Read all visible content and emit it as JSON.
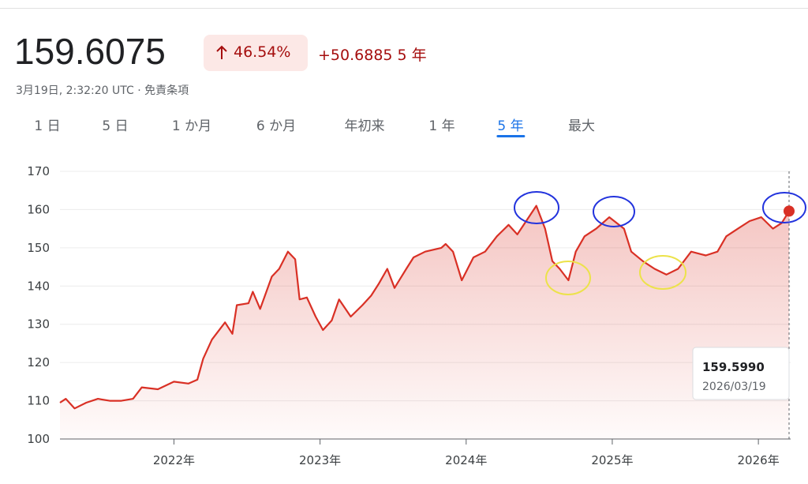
{
  "header": {
    "price": "159.6075",
    "change_percent": "46.54%",
    "change_value": "+50.6885",
    "period": "5 年",
    "timestamp": "3月19日, 2:32:20 UTC",
    "disclaimer": "免責条項"
  },
  "tabs": [
    "1 日",
    "5 日",
    "1 か月",
    "6 か月",
    "年初来",
    "1 年",
    "5 年",
    "最大"
  ],
  "active_tab": 6,
  "chart_data": {
    "type": "line",
    "x": [
      2021.22,
      2021.26,
      2021.32,
      2021.4,
      2021.48,
      2021.56,
      2021.64,
      2021.72,
      2021.78,
      2021.89,
      2022.0,
      2022.1,
      2022.16,
      2022.2,
      2022.26,
      2022.35,
      2022.4,
      2022.43,
      2022.51,
      2022.54,
      2022.59,
      2022.67,
      2022.72,
      2022.78,
      2022.83,
      2022.86,
      2022.91,
      2022.97,
      2023.02,
      2023.08,
      2023.13,
      2023.21,
      2023.29,
      2023.35,
      2023.4,
      2023.46,
      2023.51,
      2023.59,
      2023.64,
      2023.72,
      2023.83,
      2023.86,
      2023.91,
      2023.97,
      2024.05,
      2024.13,
      2024.21,
      2024.29,
      2024.35,
      2024.42,
      2024.48,
      2024.54,
      2024.59,
      2024.64,
      2024.7,
      2024.75,
      2024.81,
      2024.89,
      2024.98,
      2025.08,
      2025.13,
      2025.21,
      2025.29,
      2025.37,
      2025.45,
      2025.54,
      2025.64,
      2025.72,
      2025.78,
      2025.86,
      2025.94,
      2026.02,
      2026.1,
      2026.16,
      2026.21
    ],
    "series": [
      {
        "color": "#d93025",
        "values": [
          109.5,
          110.5,
          108,
          109.5,
          110.5,
          110,
          110,
          110.5,
          113.5,
          113,
          115,
          114.5,
          115.5,
          121,
          126,
          130.5,
          127.5,
          135,
          135.5,
          138.5,
          134,
          142.5,
          144.5,
          149,
          147,
          136.5,
          137,
          132,
          128.5,
          131,
          136.5,
          132,
          135,
          137.5,
          140.5,
          144.5,
          139.5,
          144.5,
          147.5,
          149,
          150,
          151,
          149,
          141.5,
          147.5,
          149,
          153,
          156,
          153.5,
          157.5,
          161,
          155,
          146.5,
          144.5,
          141.5,
          149,
          153,
          155,
          158,
          155,
          149,
          146.5,
          144.5,
          143,
          144.5,
          149,
          148,
          149,
          153,
          155,
          157,
          158,
          155,
          156.5,
          159.599
        ]
      }
    ],
    "xlim": [
      2021.22,
      2026.21
    ],
    "ylim": [
      100,
      170
    ],
    "yticks": [
      100,
      110,
      120,
      130,
      140,
      150,
      160,
      170
    ],
    "xticks": [
      {
        "value": 2022,
        "label": "2022年"
      },
      {
        "value": 2023,
        "label": "2023年"
      },
      {
        "value": 2024,
        "label": "2024年"
      },
      {
        "value": 2025,
        "label": "2025年"
      },
      {
        "value": 2026,
        "label": "2026年"
      }
    ],
    "grid": true,
    "tooltip": {
      "value": "159.5990",
      "date": "2026/03/19"
    }
  }
}
